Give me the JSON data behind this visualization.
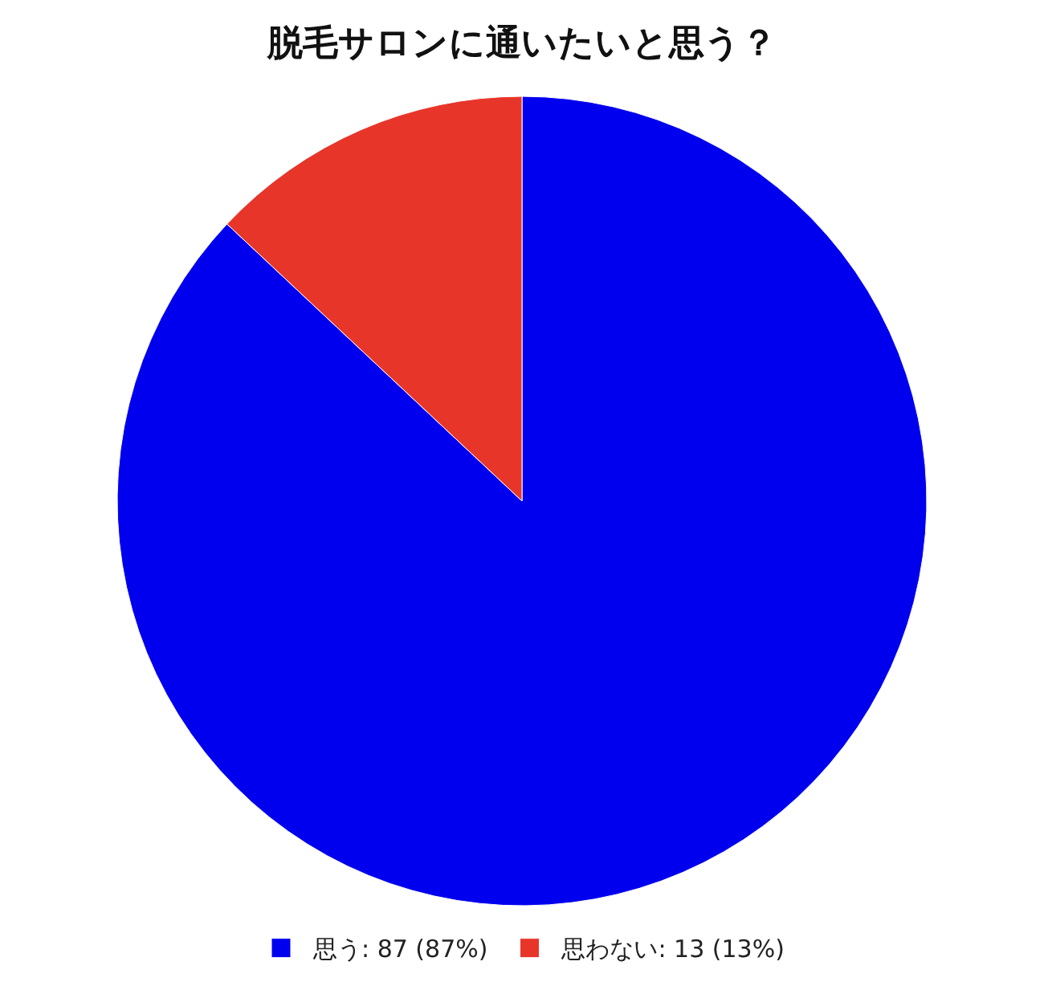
{
  "chart_data": {
    "type": "pie",
    "title": "脱毛サロンに通いたいと思う？",
    "categories": [
      "思う: 87 (87%)",
      "思わない: 13 (13%)"
    ],
    "values": [
      87,
      13
    ],
    "colors": [
      "#0000ee",
      "#e8352a"
    ],
    "legend": "bottom"
  }
}
